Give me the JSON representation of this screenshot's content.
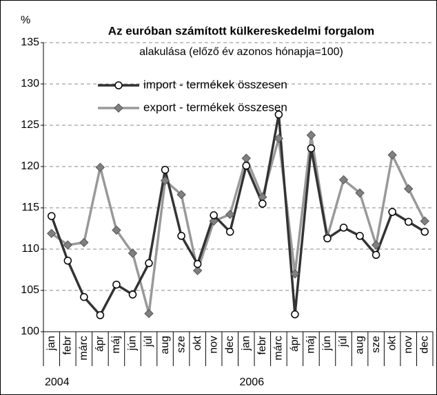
{
  "chart_data": {
    "type": "line",
    "title": "Az euróban számított külkereskedelmi forgalom",
    "subtitle": "alakulása (előző év azonos hónapja=100)",
    "y_label": "%",
    "categories": [
      "jan",
      "febr",
      "márc",
      "ápr",
      "máj",
      "jún",
      "júl",
      "aug",
      "sze",
      "okt",
      "nov",
      "dec",
      "jan",
      "febr",
      "márc",
      "ápr",
      "máj",
      "jún",
      "júl",
      "aug",
      "sze",
      "okt",
      "nov",
      "dec"
    ],
    "year_labels": [
      "2004",
      "2006"
    ],
    "series": [
      {
        "name": "import - termékek összesen",
        "color": "#333333",
        "marker": "circle",
        "values": [
          114.0,
          108.6,
          104.2,
          102.0,
          105.7,
          104.5,
          108.3,
          119.6,
          111.6,
          108.2,
          114.1,
          112.1,
          120.1,
          115.5,
          126.3,
          102.1,
          122.2,
          111.3,
          112.6,
          111.6,
          109.3,
          114.5,
          113.3,
          112.1
        ]
      },
      {
        "name": "export - termékek összesen",
        "color": "#999999",
        "marker": "diamond",
        "values": [
          111.9,
          110.5,
          110.8,
          119.9,
          112.3,
          109.5,
          102.2,
          118.3,
          116.6,
          107.4,
          113.4,
          114.2,
          121.0,
          116.3,
          123.4,
          107.0,
          123.8,
          111.5,
          118.4,
          116.8,
          110.5,
          121.4,
          117.3,
          113.4
        ]
      }
    ],
    "ylim": [
      100,
      135
    ],
    "yticks": [
      100,
      105,
      110,
      115,
      120,
      125,
      130,
      135
    ],
    "grid": true
  }
}
